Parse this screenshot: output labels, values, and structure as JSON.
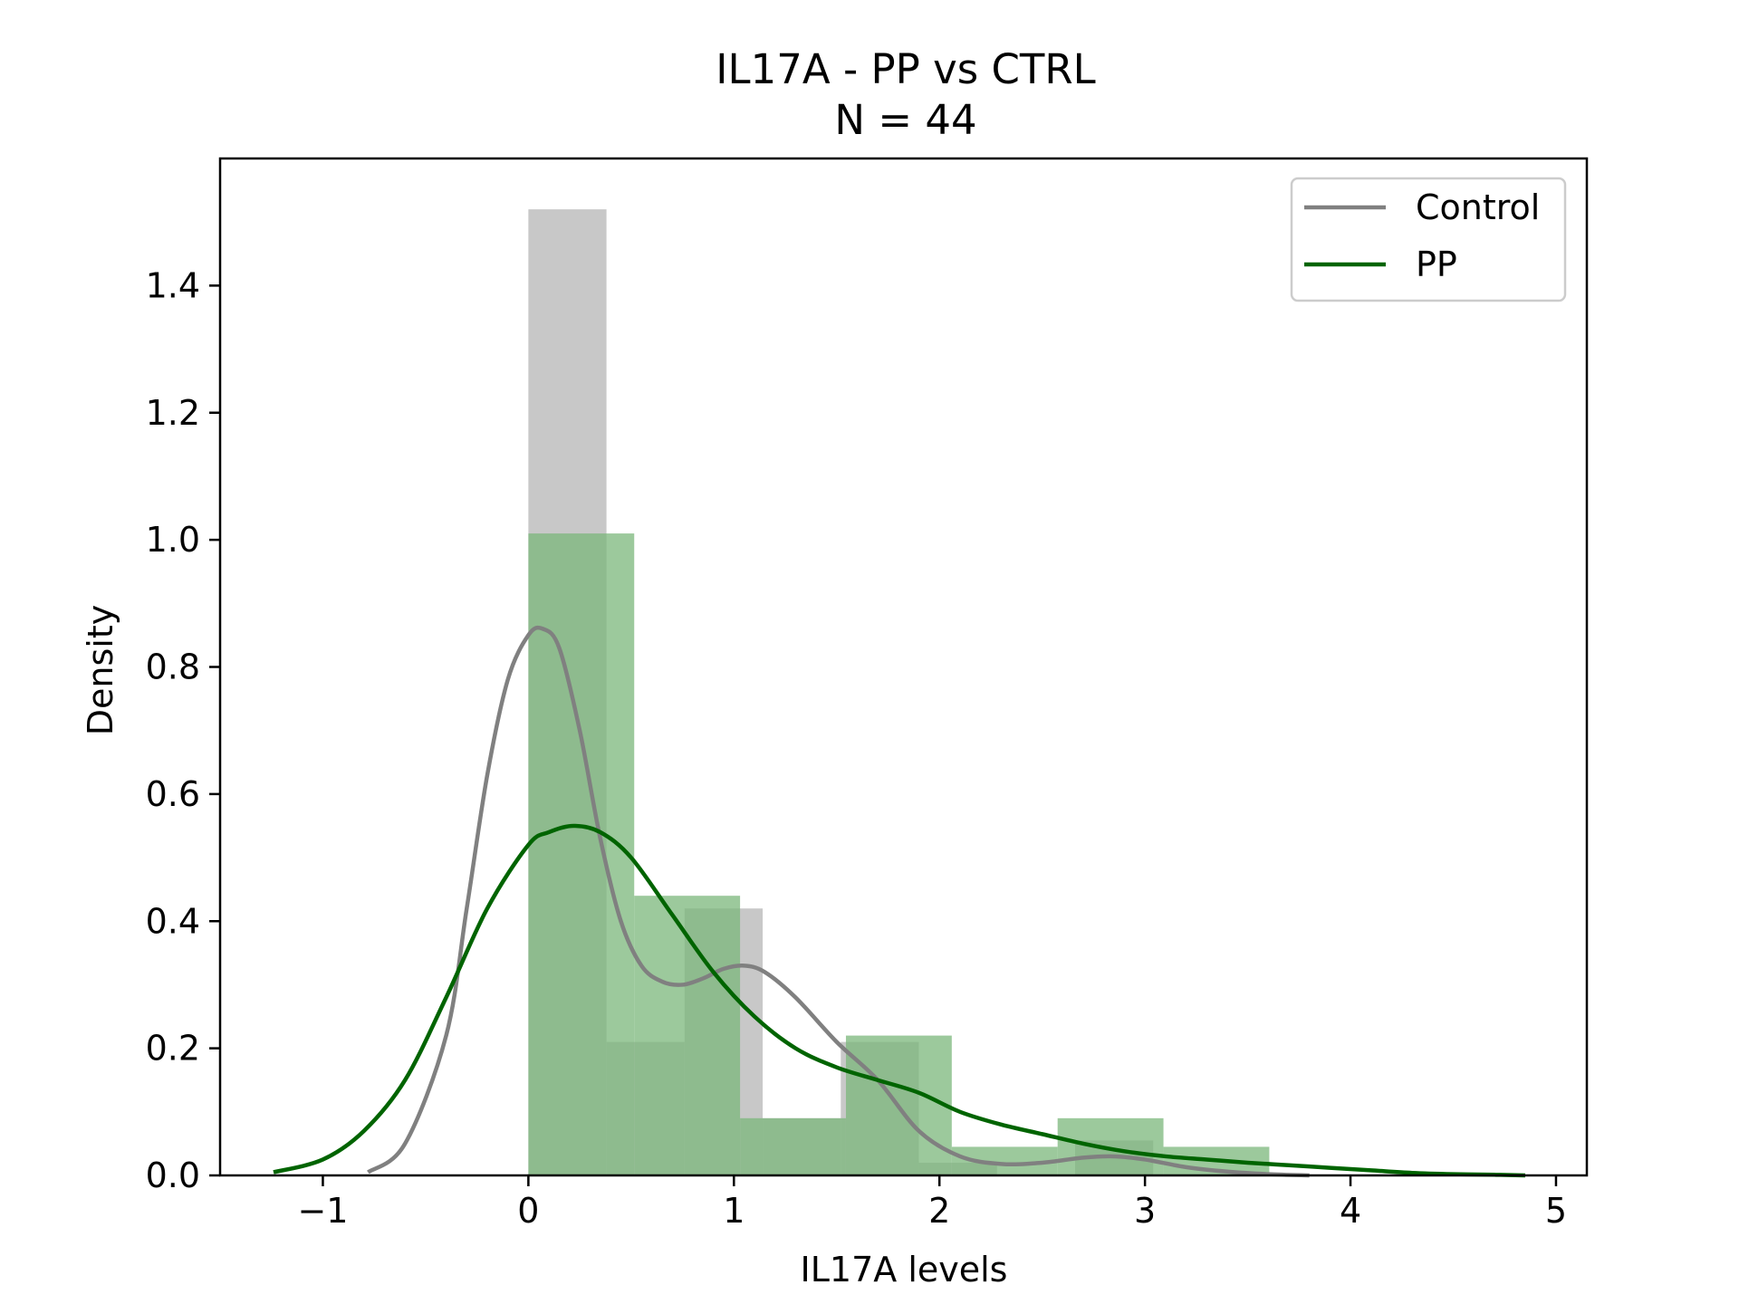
{
  "chart_data": {
    "type": "histogram+kde",
    "title": "IL17A - PP vs CTRL",
    "subtitle": "N = 44",
    "xlabel": "IL17A levels",
    "ylabel": "Density",
    "xlim": [
      -1.5,
      5.15
    ],
    "ylim": [
      0,
      1.6
    ],
    "xticks": [
      -1,
      0,
      1,
      2,
      3,
      4,
      5
    ],
    "xtick_labels": [
      "−1",
      "0",
      "1",
      "2",
      "3",
      "4",
      "5"
    ],
    "yticks": [
      0,
      0.2,
      0.4,
      0.6,
      0.8,
      1.0,
      1.2,
      1.4
    ],
    "ytick_labels": [
      "0.0",
      "0.2",
      "0.4",
      "0.6",
      "0.8",
      "1.0",
      "1.2",
      "1.4"
    ],
    "legend_position": "top-right",
    "legend": [
      {
        "label": "Control",
        "color": "#808080"
      },
      {
        "label": "PP",
        "color": "#006400"
      }
    ],
    "series": [
      {
        "name": "Control",
        "color": "#808080",
        "hist_color": "#c8c8c8",
        "hist_edges": [
          0,
          0.38,
          0.76,
          1.14,
          1.52,
          1.9,
          2.28,
          2.66,
          3.04
        ],
        "hist_values": [
          1.52,
          0.21,
          0.42,
          0.09,
          0.21,
          0.02,
          0.0,
          0.055
        ],
        "kde_x": [
          -0.78,
          -0.6,
          -0.4,
          -0.3,
          -0.2,
          -0.1,
          0.0,
          0.07,
          0.15,
          0.25,
          0.35,
          0.45,
          0.55,
          0.65,
          0.75,
          0.85,
          0.95,
          1.05,
          1.15,
          1.3,
          1.5,
          1.7,
          1.9,
          2.1,
          2.3,
          2.5,
          2.7,
          2.85,
          3.0,
          3.2,
          3.4,
          3.6,
          3.8
        ],
        "kde_y": [
          0.005,
          0.05,
          0.22,
          0.42,
          0.63,
          0.78,
          0.85,
          0.86,
          0.83,
          0.7,
          0.53,
          0.4,
          0.33,
          0.305,
          0.3,
          0.31,
          0.325,
          0.33,
          0.32,
          0.28,
          0.21,
          0.15,
          0.07,
          0.03,
          0.018,
          0.02,
          0.028,
          0.03,
          0.025,
          0.013,
          0.006,
          0.002,
          0.0
        ]
      },
      {
        "name": "PP",
        "color": "#006400",
        "hist_color": "#7bb77b",
        "hist_edges": [
          0,
          0.515,
          1.03,
          1.545,
          2.06,
          2.575,
          3.09,
          3.605
        ],
        "hist_values": [
          1.01,
          0.44,
          0.09,
          0.22,
          0.045,
          0.09,
          0.045
        ],
        "kde_x": [
          -1.24,
          -1.0,
          -0.8,
          -0.6,
          -0.4,
          -0.2,
          0.0,
          0.1,
          0.22,
          0.35,
          0.5,
          0.7,
          0.9,
          1.1,
          1.3,
          1.5,
          1.7,
          1.9,
          2.1,
          2.3,
          2.5,
          2.7,
          2.9,
          3.1,
          3.3,
          3.5,
          3.7,
          3.9,
          4.1,
          4.3,
          4.5,
          4.7,
          4.85
        ],
        "kde_y": [
          0.005,
          0.025,
          0.07,
          0.15,
          0.28,
          0.42,
          0.52,
          0.54,
          0.55,
          0.54,
          0.5,
          0.41,
          0.32,
          0.25,
          0.2,
          0.17,
          0.15,
          0.13,
          0.1,
          0.08,
          0.065,
          0.05,
          0.038,
          0.03,
          0.025,
          0.02,
          0.016,
          0.012,
          0.008,
          0.004,
          0.002,
          0.001,
          0.0
        ]
      }
    ]
  }
}
